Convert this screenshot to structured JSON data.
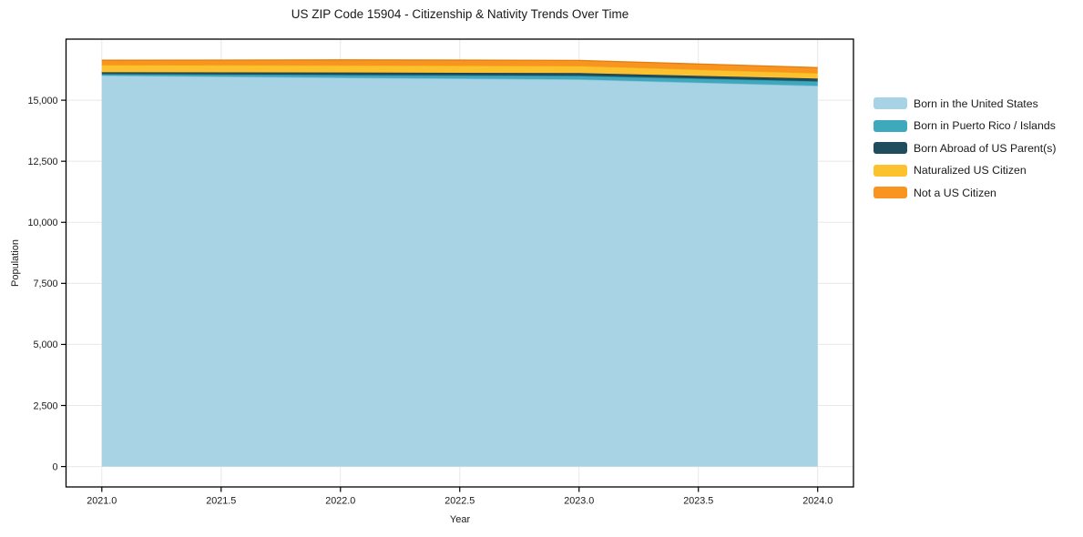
{
  "title": "US ZIP Code 15904 - Citizenship & Nativity Trends Over Time",
  "chart_data": {
    "type": "area",
    "stacked": true,
    "title": "US ZIP Code 15904 - Citizenship & Nativity Trends Over Time",
    "xlabel": "Year",
    "ylabel": "Population",
    "x": [
      2021,
      2022,
      2023,
      2024
    ],
    "series": [
      {
        "name": "Born in the United States",
        "color": "#A7D3E5",
        "edge": "#86BFDA",
        "values": [
          16010,
          15925,
          15850,
          15590
        ]
      },
      {
        "name": "Born in Puerto Rico / Islands",
        "color": "#3EA8BC",
        "edge": "#318FA3",
        "values": [
          60,
          110,
          150,
          185
        ]
      },
      {
        "name": "Born Abroad of US Parent(s)",
        "color": "#1F4D5E",
        "edge": "#173D4B",
        "values": [
          75,
          100,
          110,
          110
        ]
      },
      {
        "name": "Naturalized US Citizen",
        "color": "#FCC12E",
        "edge": "#EFAE14",
        "values": [
          300,
          295,
          295,
          225
        ]
      },
      {
        "name": "Not a US Citizen",
        "color": "#F8941F",
        "edge": "#E27F0F",
        "values": [
          190,
          220,
          225,
          225
        ]
      }
    ],
    "xlim": [
      2020.85,
      2024.15
    ],
    "ylim": [
      -835,
      17500
    ],
    "xticks": [
      2021.0,
      2021.5,
      2022.0,
      2022.5,
      2023.0,
      2023.5,
      2024.0
    ],
    "xtick_labels": [
      "2021.0",
      "2021.5",
      "2022.0",
      "2022.5",
      "2023.0",
      "2023.5",
      "2024.0"
    ],
    "yticks": [
      0,
      2500,
      5000,
      7500,
      10000,
      12500,
      15000
    ],
    "ytick_labels": [
      "0",
      "2,500",
      "5,000",
      "7,500",
      "10,000",
      "12,500",
      "15,000"
    ],
    "grid": true,
    "grid_color": "#e8e8e8",
    "spine_color": "#000000",
    "legend_position": "right"
  }
}
